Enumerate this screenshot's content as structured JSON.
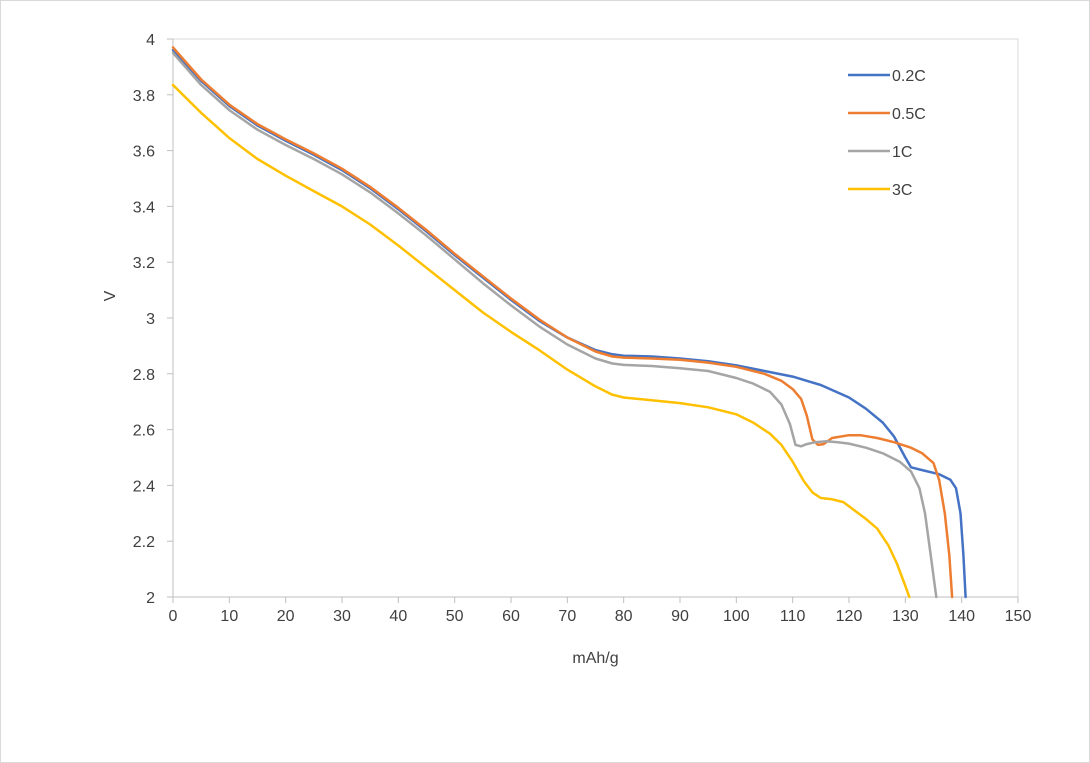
{
  "chart_data": {
    "type": "line",
    "xlabel": "mAh/g",
    "ylabel": "V",
    "xlim": [
      0,
      150
    ],
    "ylim": [
      2,
      4
    ],
    "x_ticks": [
      0,
      10,
      20,
      30,
      40,
      50,
      60,
      70,
      80,
      90,
      100,
      110,
      120,
      130,
      140,
      150
    ],
    "y_ticks": [
      2,
      2.2,
      2.4,
      2.6,
      2.8,
      3,
      3.2,
      3.4,
      3.6,
      3.8,
      4
    ],
    "y_tick_labels": [
      "2",
      "2.2",
      "2.4",
      "2.6",
      "2.8",
      "3",
      "3.2",
      "3.4",
      "3.6",
      "3.8",
      "4"
    ],
    "grid": false,
    "legend_position": "top-right",
    "series": [
      {
        "name": "0.2C",
        "color": "#4472c4",
        "points": [
          [
            0,
            3.96
          ],
          [
            5,
            3.85
          ],
          [
            10,
            3.76
          ],
          [
            15,
            3.69
          ],
          [
            20,
            3.635
          ],
          [
            25,
            3.585
          ],
          [
            30,
            3.53
          ],
          [
            35,
            3.465
          ],
          [
            40,
            3.39
          ],
          [
            45,
            3.31
          ],
          [
            50,
            3.225
          ],
          [
            55,
            3.145
          ],
          [
            60,
            3.065
          ],
          [
            65,
            2.99
          ],
          [
            70,
            2.93
          ],
          [
            75,
            2.885
          ],
          [
            78,
            2.87
          ],
          [
            80,
            2.865
          ],
          [
            85,
            2.862
          ],
          [
            90,
            2.855
          ],
          [
            95,
            2.845
          ],
          [
            100,
            2.83
          ],
          [
            105,
            2.81
          ],
          [
            110,
            2.79
          ],
          [
            115,
            2.76
          ],
          [
            120,
            2.715
          ],
          [
            123,
            2.675
          ],
          [
            126,
            2.625
          ],
          [
            128,
            2.575
          ],
          [
            130,
            2.5
          ],
          [
            131,
            2.465
          ],
          [
            133,
            2.455
          ],
          [
            136,
            2.44
          ],
          [
            138,
            2.42
          ],
          [
            139,
            2.39
          ],
          [
            139.8,
            2.3
          ],
          [
            140.3,
            2.15
          ],
          [
            140.7,
            2.0
          ]
        ]
      },
      {
        "name": "0.5C",
        "color": "#ed7d31",
        "points": [
          [
            0,
            3.97
          ],
          [
            5,
            3.855
          ],
          [
            10,
            3.765
          ],
          [
            15,
            3.695
          ],
          [
            20,
            3.64
          ],
          [
            25,
            3.59
          ],
          [
            30,
            3.535
          ],
          [
            35,
            3.47
          ],
          [
            40,
            3.395
          ],
          [
            45,
            3.315
          ],
          [
            50,
            3.23
          ],
          [
            55,
            3.15
          ],
          [
            60,
            3.07
          ],
          [
            65,
            2.995
          ],
          [
            70,
            2.93
          ],
          [
            75,
            2.88
          ],
          [
            78,
            2.862
          ],
          [
            80,
            2.858
          ],
          [
            85,
            2.855
          ],
          [
            90,
            2.85
          ],
          [
            95,
            2.84
          ],
          [
            100,
            2.825
          ],
          [
            105,
            2.8
          ],
          [
            108,
            2.775
          ],
          [
            110,
            2.745
          ],
          [
            111.5,
            2.71
          ],
          [
            112.5,
            2.65
          ],
          [
            113.5,
            2.565
          ],
          [
            114.5,
            2.545
          ],
          [
            115.5,
            2.548
          ],
          [
            117,
            2.57
          ],
          [
            120,
            2.58
          ],
          [
            122,
            2.58
          ],
          [
            125,
            2.57
          ],
          [
            128,
            2.555
          ],
          [
            131,
            2.535
          ],
          [
            133,
            2.515
          ],
          [
            135,
            2.48
          ],
          [
            136,
            2.42
          ],
          [
            137,
            2.3
          ],
          [
            137.8,
            2.15
          ],
          [
            138.3,
            2.0
          ]
        ]
      },
      {
        "name": "1C",
        "color": "#a5a5a5",
        "points": [
          [
            0,
            3.95
          ],
          [
            5,
            3.835
          ],
          [
            10,
            3.745
          ],
          [
            15,
            3.675
          ],
          [
            20,
            3.62
          ],
          [
            25,
            3.57
          ],
          [
            30,
            3.515
          ],
          [
            35,
            3.45
          ],
          [
            40,
            3.375
          ],
          [
            45,
            3.295
          ],
          [
            50,
            3.21
          ],
          [
            55,
            3.125
          ],
          [
            60,
            3.045
          ],
          [
            65,
            2.97
          ],
          [
            70,
            2.905
          ],
          [
            75,
            2.855
          ],
          [
            78,
            2.837
          ],
          [
            80,
            2.832
          ],
          [
            85,
            2.828
          ],
          [
            90,
            2.82
          ],
          [
            95,
            2.81
          ],
          [
            100,
            2.785
          ],
          [
            103,
            2.765
          ],
          [
            106,
            2.735
          ],
          [
            108,
            2.69
          ],
          [
            109.5,
            2.62
          ],
          [
            110.5,
            2.545
          ],
          [
            111.5,
            2.54
          ],
          [
            112.5,
            2.548
          ],
          [
            114,
            2.555
          ],
          [
            116,
            2.558
          ],
          [
            118,
            2.555
          ],
          [
            120,
            2.55
          ],
          [
            123,
            2.535
          ],
          [
            126,
            2.515
          ],
          [
            129,
            2.485
          ],
          [
            131,
            2.45
          ],
          [
            132.5,
            2.39
          ],
          [
            133.5,
            2.3
          ],
          [
            134.5,
            2.15
          ],
          [
            135.5,
            2.0
          ]
        ]
      },
      {
        "name": "3C",
        "color": "#ffc000",
        "points": [
          [
            0,
            3.835
          ],
          [
            5,
            3.735
          ],
          [
            10,
            3.645
          ],
          [
            15,
            3.57
          ],
          [
            20,
            3.51
          ],
          [
            25,
            3.455
          ],
          [
            30,
            3.4
          ],
          [
            35,
            3.335
          ],
          [
            40,
            3.26
          ],
          [
            45,
            3.18
          ],
          [
            50,
            3.1
          ],
          [
            55,
            3.02
          ],
          [
            60,
            2.95
          ],
          [
            65,
            2.885
          ],
          [
            70,
            2.815
          ],
          [
            75,
            2.755
          ],
          [
            78,
            2.725
          ],
          [
            80,
            2.715
          ],
          [
            85,
            2.705
          ],
          [
            90,
            2.695
          ],
          [
            95,
            2.68
          ],
          [
            100,
            2.655
          ],
          [
            103,
            2.625
          ],
          [
            106,
            2.585
          ],
          [
            108,
            2.545
          ],
          [
            110,
            2.485
          ],
          [
            112,
            2.415
          ],
          [
            113.5,
            2.375
          ],
          [
            115,
            2.355
          ],
          [
            117,
            2.35
          ],
          [
            119,
            2.34
          ],
          [
            121,
            2.31
          ],
          [
            123,
            2.28
          ],
          [
            125,
            2.245
          ],
          [
            127,
            2.185
          ],
          [
            128.5,
            2.12
          ],
          [
            130,
            2.04
          ],
          [
            130.7,
            2.0
          ]
        ]
      }
    ]
  }
}
